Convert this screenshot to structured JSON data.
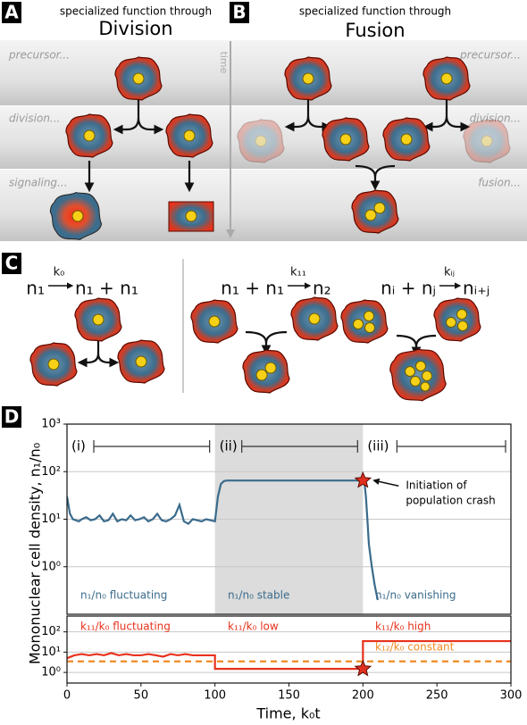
{
  "panels": {
    "A": {
      "label": "A",
      "subtitle": "specialized function through",
      "title": "Division",
      "rows": [
        "precursor...",
        "division...",
        "signaling..."
      ]
    },
    "B": {
      "label": "B",
      "subtitle": "specialized function through",
      "title": "Fusion",
      "rows": [
        "precursor...",
        "division...",
        "fusion..."
      ]
    },
    "time_axis": "time",
    "C": {
      "label": "C",
      "reactions": [
        {
          "lhs": "n₁",
          "rate": "k₀",
          "rhs": "n₁ + n₁"
        },
        {
          "lhs": "n₁ + n₁",
          "rate": "k₁₁",
          "rhs": "n₂"
        },
        {
          "lhs": "nᵢ + nⱼ",
          "rate": "kᵢⱼ",
          "rhs": "nᵢ₊ⱼ"
        }
      ]
    },
    "D": {
      "label": "D"
    }
  },
  "chart_data": [
    {
      "type": "line",
      "ylabel": "Mononuclear cell density, n₁/n₀",
      "xlim": [
        0,
        300
      ],
      "ylim": [
        0.1,
        1000
      ],
      "log_y": true,
      "grid": true,
      "yticks": [
        {
          "value": 1,
          "label": "10⁰"
        },
        {
          "value": 10,
          "label": "10¹"
        },
        {
          "value": 100,
          "label": "10²"
        },
        {
          "value": 1000,
          "label": "10³"
        }
      ],
      "shade": [
        100,
        200
      ],
      "intervals": [
        {
          "label": "(i)",
          "range": [
            0,
            100
          ]
        },
        {
          "label": "(ii)",
          "range": [
            100,
            200
          ]
        },
        {
          "label": "(iii)",
          "range": [
            200,
            300
          ]
        }
      ],
      "callout": [
        "Initiation of",
        "population crash"
      ],
      "annotations": [
        "n₁/n₀ fluctuating",
        "n₁/n₀ stable",
        "n₁/n₀ vanishing"
      ],
      "annotation_colors": [
        "#3a6b8c",
        "#3a6b8c",
        "#3a6b8c"
      ],
      "series": [
        {
          "color": "#3a6b8c",
          "x": [
            0,
            2,
            4,
            6,
            8,
            10,
            13,
            16,
            19,
            22,
            25,
            28,
            31,
            34,
            37,
            40,
            43,
            46,
            49,
            52,
            55,
            58,
            61,
            64,
            67,
            70,
            73,
            76,
            79,
            82,
            85,
            88,
            91,
            94,
            97,
            100,
            102,
            104,
            106,
            108,
            110,
            150,
            199,
            200,
            201,
            202,
            203,
            204,
            206,
            208,
            210
          ],
          "values": [
            30,
            13,
            10,
            9.5,
            9,
            10,
            11,
            9.5,
            10,
            12,
            9,
            9.5,
            13,
            9,
            10,
            9.5,
            12,
            9.5,
            10,
            11,
            9,
            10,
            13,
            9.5,
            9,
            10,
            12,
            20,
            9,
            8,
            10,
            9.5,
            9,
            10,
            9.5,
            9,
            30,
            55,
            63,
            65,
            65,
            65,
            65,
            65,
            60,
            30,
            10,
            3,
            1,
            0.4,
            0.2
          ]
        }
      ]
    },
    {
      "type": "line",
      "xlabel": "Time, k₀t",
      "xlim": [
        0,
        300
      ],
      "ylim": [
        0.3,
        600
      ],
      "log_y": true,
      "grid": true,
      "xticks": [
        0,
        50,
        100,
        150,
        200,
        250,
        300
      ],
      "yticks": [
        {
          "value": 1,
          "label": "10⁰"
        },
        {
          "value": 10,
          "label": "10¹"
        },
        {
          "value": 100,
          "label": "10²"
        }
      ],
      "annotations": [
        "k₁₁/k₀ fluctuating",
        "k₁₁/k₀ low",
        "k₁₁/k₀ high",
        "k₁₂/k₀ constant"
      ],
      "annotation_colors": [
        "#e8321c",
        "#e8321c",
        "#e8321c",
        "#f08a24"
      ],
      "series": [
        {
          "color": "#e8321c",
          "x": [
            0,
            5,
            10,
            15,
            20,
            25,
            30,
            35,
            40,
            45,
            50,
            55,
            60,
            65,
            70,
            75,
            80,
            85,
            90,
            95,
            100,
            100,
            200,
            200,
            300
          ],
          "values": [
            5,
            7,
            8,
            7,
            8,
            7,
            9,
            7,
            8,
            7,
            7,
            8,
            7,
            6,
            8,
            7,
            8,
            7,
            7,
            7,
            7,
            1.5,
            1.5,
            35,
            35
          ]
        },
        {
          "color": "#f08a24",
          "dashed": true,
          "x": [
            0,
            300
          ],
          "values": [
            3.5,
            3.5
          ]
        }
      ]
    }
  ]
}
